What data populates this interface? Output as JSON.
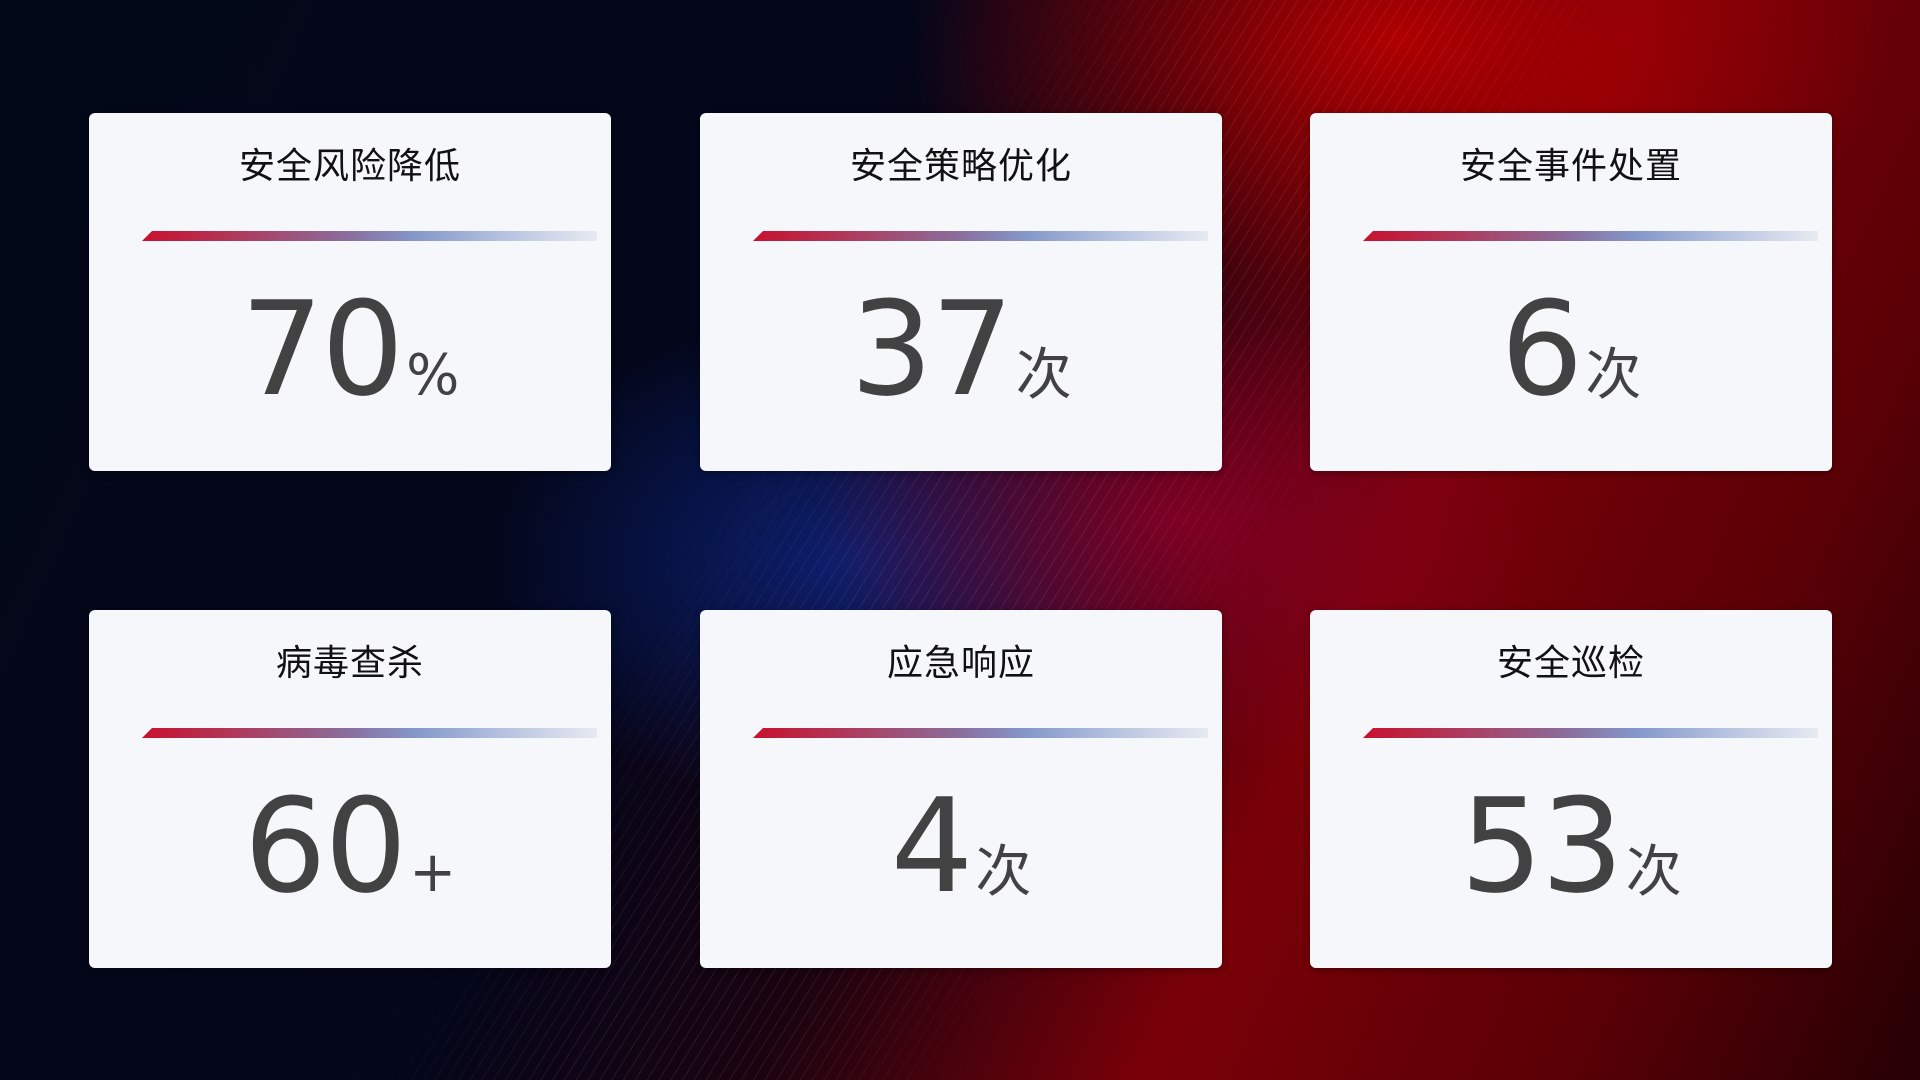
{
  "colors": {
    "accent_red": "#c8102e",
    "accent_blue": "#8497c9",
    "card_bg": "#f6f7fb",
    "value_text": "#424242"
  },
  "cards": [
    {
      "title": "安全风险降低",
      "value": "70",
      "unit": "%"
    },
    {
      "title": "安全策略优化",
      "value": "37",
      "unit": "次"
    },
    {
      "title": "安全事件处置",
      "value": "6",
      "unit": "次"
    },
    {
      "title": "病毒查杀",
      "value": "60",
      "unit": "+"
    },
    {
      "title": "应急响应",
      "value": "4",
      "unit": "次"
    },
    {
      "title": "安全巡检",
      "value": "53",
      "unit": "次"
    }
  ]
}
